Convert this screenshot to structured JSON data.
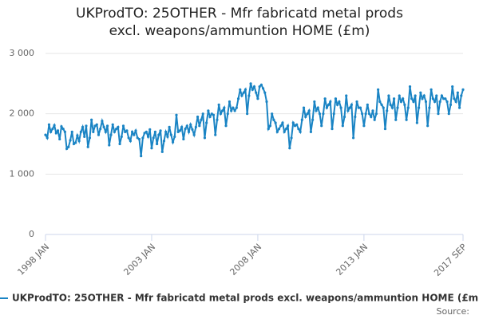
{
  "chart_data": {
    "type": "line",
    "title": "UKProdTO: 25OTHER - Mfr fabricatd metal prods excl. weapons/ammuntion HOME (£m)",
    "source": "Source:",
    "categories": [
      "1998 JAN",
      null,
      null,
      null,
      null,
      null,
      null,
      null,
      null,
      null,
      null,
      null,
      null,
      null,
      null,
      null,
      null,
      null,
      null,
      null,
      null,
      null,
      null,
      null,
      null,
      null,
      null,
      null,
      null,
      null,
      null,
      null,
      null,
      null,
      null,
      null,
      null,
      null,
      null,
      null,
      null,
      null,
      null,
      null,
      null,
      null,
      null,
      null,
      null,
      null,
      null,
      null,
      null,
      null,
      null,
      null,
      null,
      null,
      null,
      null,
      "2003 JAN",
      null,
      null,
      null,
      null,
      null,
      null,
      null,
      null,
      null,
      null,
      null,
      null,
      null,
      null,
      null,
      null,
      null,
      null,
      null,
      null,
      null,
      null,
      null,
      null,
      null,
      null,
      null,
      null,
      null,
      null,
      null,
      null,
      null,
      null,
      null,
      null,
      null,
      null,
      null,
      null,
      null,
      null,
      null,
      null,
      null,
      null,
      null,
      null,
      null,
      null,
      null,
      null,
      null,
      null,
      null,
      null,
      null,
      null,
      null,
      "2008 JAN",
      null,
      null,
      null,
      null,
      null,
      null,
      null,
      null,
      null,
      null,
      null,
      null,
      null,
      null,
      null,
      null,
      null,
      null,
      null,
      null,
      null,
      null,
      null,
      null,
      null,
      null,
      null,
      null,
      null,
      null,
      null,
      null,
      null,
      null,
      null,
      null,
      null,
      null,
      null,
      null,
      null,
      null,
      null,
      null,
      null,
      null,
      null,
      null,
      null,
      null,
      null,
      null,
      null,
      null,
      null,
      null,
      null,
      null,
      null,
      "2013 JAN",
      null,
      null,
      null,
      null,
      null,
      null,
      null,
      null,
      null,
      null,
      null,
      null,
      null,
      null,
      null,
      null,
      null,
      null,
      null,
      null,
      null,
      null,
      null,
      null,
      null,
      null,
      null,
      null,
      null,
      null,
      null,
      null,
      null,
      null,
      null,
      null,
      null,
      null,
      null,
      null,
      null,
      null,
      null,
      null,
      null,
      null,
      null,
      null,
      null,
      null,
      null,
      null,
      null,
      null,
      null,
      "2017 SEP"
    ],
    "series": [
      {
        "name": "UKProdTO: 25OTHER - Mfr fabricatd metal prods excl. weapons/ammuntion HOME (£m)",
        "color": "#1a84c4",
        "values": [
          1650,
          1600,
          1820,
          1700,
          1750,
          1810,
          1680,
          1720,
          1580,
          1790,
          1750,
          1700,
          1420,
          1450,
          1560,
          1700,
          1500,
          1520,
          1640,
          1550,
          1700,
          1780,
          1620,
          1800,
          1450,
          1600,
          1900,
          1700,
          1800,
          1820,
          1650,
          1750,
          1880,
          1780,
          1700,
          1800,
          1480,
          1650,
          1820,
          1700,
          1750,
          1780,
          1500,
          1620,
          1800,
          1700,
          1720,
          1600,
          1550,
          1700,
          1650,
          1720,
          1600,
          1580,
          1300,
          1600,
          1680,
          1700,
          1620,
          1740,
          1430,
          1600,
          1700,
          1500,
          1650,
          1720,
          1370,
          1550,
          1700,
          1620,
          1780,
          1650,
          1530,
          1620,
          1980,
          1700,
          1720,
          1780,
          1580,
          1750,
          1800,
          1700,
          1820,
          1740,
          1650,
          1780,
          1950,
          1800,
          1900,
          2000,
          1600,
          1850,
          2050,
          1950,
          2000,
          1980,
          1650,
          1900,
          2150,
          2000,
          2050,
          2100,
          1800,
          2000,
          2200,
          2050,
          2100,
          2050,
          2100,
          2250,
          2400,
          2300,
          2350,
          2400,
          2000,
          2300,
          2500,
          2400,
          2450,
          2350,
          2250,
          2450,
          2480,
          2420,
          2350,
          2200,
          1750,
          1800,
          2000,
          1900,
          1850,
          1700,
          1750,
          1800,
          1850,
          1700,
          1750,
          1800,
          1430,
          1600,
          1850,
          1800,
          1820,
          1750,
          1700,
          1900,
          2100,
          1950,
          2000,
          2050,
          1700,
          1900,
          2200,
          2050,
          2100,
          2000,
          1800,
          2000,
          2250,
          2100,
          2150,
          2200,
          1750,
          2000,
          2250,
          2150,
          2200,
          2100,
          1800,
          1950,
          2300,
          2050,
          2100,
          2150,
          1600,
          1950,
          2200,
          2100,
          2100,
          2000,
          1800,
          2000,
          2150,
          2000,
          1950,
          2050,
          1900,
          2000,
          2400,
          2200,
          2150,
          2100,
          1750,
          2050,
          2300,
          2150,
          2100,
          2250,
          1900,
          2100,
          2300,
          2200,
          2250,
          2150,
          1900,
          2100,
          2450,
          2250,
          2200,
          2300,
          1850,
          2100,
          2350,
          2250,
          2300,
          2200,
          1800,
          2100,
          2400,
          2250,
          2200,
          2300,
          2000,
          2200,
          2300,
          2250,
          2250,
          2200,
          2000,
          2150,
          2450,
          2250,
          2200,
          2350,
          2100,
          2300,
          2400
        ]
      }
    ],
    "ylim": [
      0,
      3000
    ],
    "yticks": [
      0,
      {
        "value": 1000,
        "label": "1 000"
      },
      {
        "value": 2000,
        "label": "2 000"
      },
      {
        "value": 3000,
        "label": "3 000"
      }
    ],
    "grid": true
  }
}
